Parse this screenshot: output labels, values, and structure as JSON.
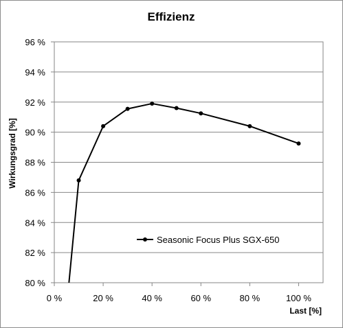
{
  "chart_data": {
    "type": "line",
    "title": "Effizienz",
    "xlabel": "Last [%]",
    "ylabel": "Wirkungsgrad [%]",
    "xlim": [
      0,
      110
    ],
    "ylim": [
      80,
      96
    ],
    "xticks": [
      0,
      20,
      40,
      60,
      80,
      100
    ],
    "yticks": [
      80,
      82,
      84,
      86,
      88,
      90,
      92,
      94,
      96
    ],
    "xtick_labels": [
      "0 %",
      "20 %",
      "40 %",
      "60 %",
      "80 %",
      "100 %"
    ],
    "ytick_labels": [
      "80 %",
      "82 %",
      "84 %",
      "86 %",
      "88 %",
      "90 %",
      "92 %",
      "94 %",
      "96 %"
    ],
    "grid": "horizontal",
    "legend_position": "center",
    "series": [
      {
        "name": "Seasonic Focus Plus SGX-650",
        "color": "#000000",
        "x": [
          6,
          10,
          20,
          30,
          40,
          50,
          60,
          80,
          100
        ],
        "y": [
          80.0,
          86.8,
          90.4,
          91.55,
          91.9,
          91.6,
          91.25,
          90.4,
          89.25
        ],
        "markers": [
          false,
          true,
          true,
          true,
          true,
          true,
          true,
          true,
          true
        ]
      }
    ]
  }
}
